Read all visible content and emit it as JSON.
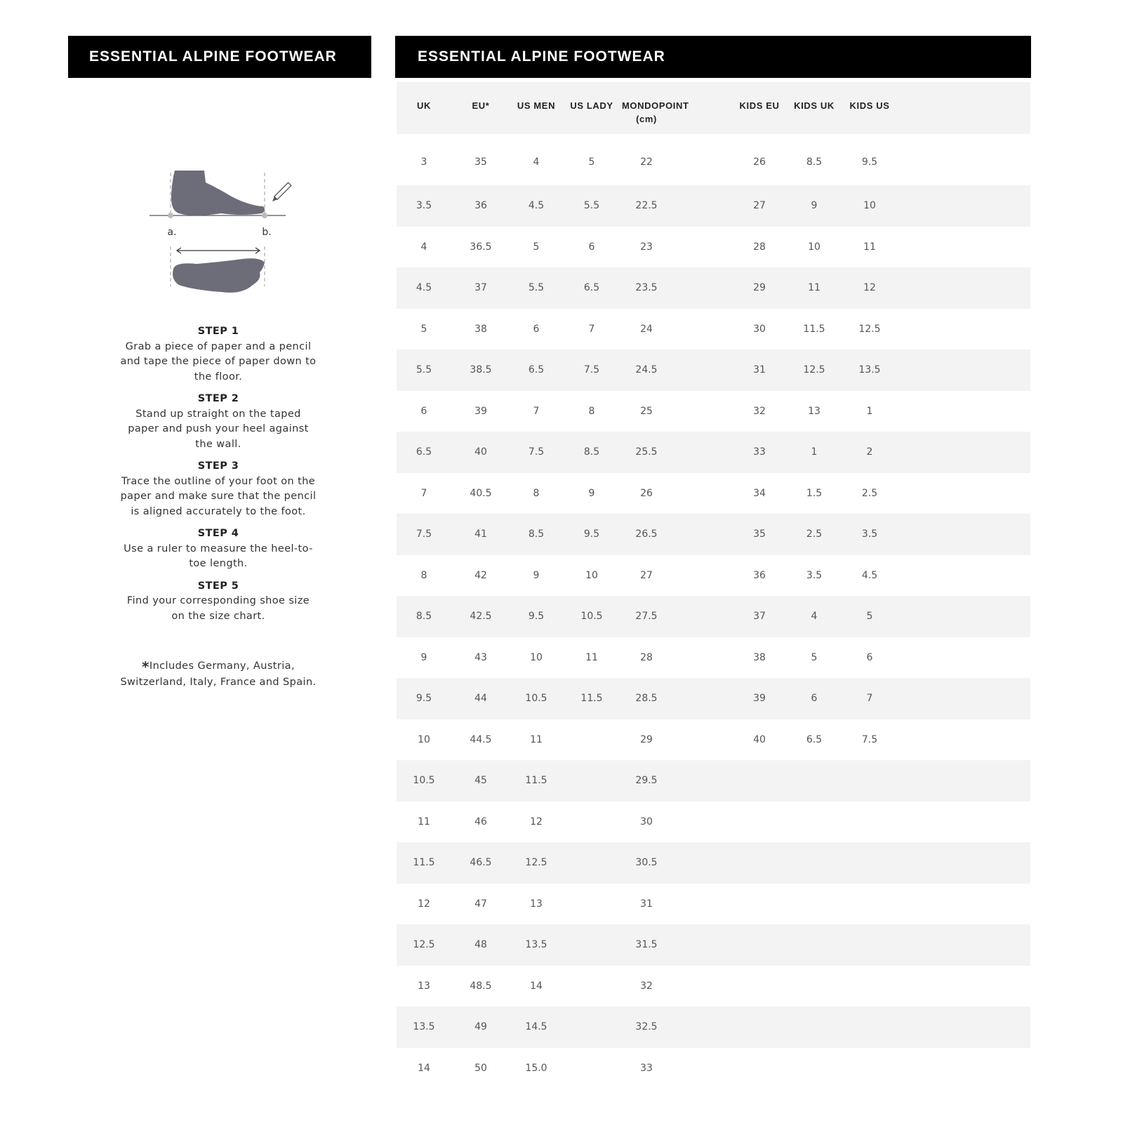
{
  "left_panel": {
    "title": "ESSENTIAL ALPINE FOOTWEAR",
    "illustration": {
      "label_a": "a.",
      "label_b": "b.",
      "icons": [
        "foot-side-icon",
        "foot-top-icon",
        "pencil-icon",
        "double-arrow-icon"
      ]
    },
    "steps": [
      {
        "title": "STEP 1",
        "text": "Grab a piece of paper and a pencil and tape the piece of paper down to the floor."
      },
      {
        "title": "STEP 2",
        "text": "Stand up straight on the taped paper and push your heel against the wall."
      },
      {
        "title": "STEP 3",
        "text": "Trace the outline of your foot on the paper and make sure that the pencil is aligned accurately to the foot."
      },
      {
        "title": "STEP 4",
        "text": "Use a ruler to measure the heel-to-toe length."
      },
      {
        "title": "STEP 5",
        "text": "Find your corresponding shoe size on the size chart."
      }
    ],
    "footnote_mark": "*",
    "footnote": "Includes Germany, Austria, Switzerland, Italy, France and Spain."
  },
  "size_chart": {
    "title": "ESSENTIAL ALPINE FOOTWEAR",
    "columns": [
      "UK",
      "EU*",
      "US MEN",
      "US LADY",
      "MONDOPOINT (cm)",
      "",
      "KIDS EU",
      "KIDS UK",
      "KIDS US",
      ""
    ],
    "rows": [
      [
        "3",
        "35",
        "4",
        "5",
        "22",
        "",
        "26",
        "8.5",
        "9.5"
      ],
      [
        "3.5",
        "36",
        "4.5",
        "5.5",
        "22.5",
        "",
        "27",
        "9",
        "10"
      ],
      [
        "4",
        "36.5",
        "5",
        "6",
        "23",
        "",
        "28",
        "10",
        "11"
      ],
      [
        "4.5",
        "37",
        "5.5",
        "6.5",
        "23.5",
        "",
        "29",
        "11",
        "12"
      ],
      [
        "5",
        "38",
        "6",
        "7",
        "24",
        "",
        "30",
        "11.5",
        "12.5"
      ],
      [
        "5.5",
        "38.5",
        "6.5",
        "7.5",
        "24.5",
        "",
        "31",
        "12.5",
        "13.5"
      ],
      [
        "6",
        "39",
        "7",
        "8",
        "25",
        "",
        "32",
        "13",
        "1"
      ],
      [
        "6.5",
        "40",
        "7.5",
        "8.5",
        "25.5",
        "",
        "33",
        "1",
        "2"
      ],
      [
        "7",
        "40.5",
        "8",
        "9",
        "26",
        "",
        "34",
        "1.5",
        "2.5"
      ],
      [
        "7.5",
        "41",
        "8.5",
        "9.5",
        "26.5",
        "",
        "35",
        "2.5",
        "3.5"
      ],
      [
        "8",
        "42",
        "9",
        "10",
        "27",
        "",
        "36",
        "3.5",
        "4.5"
      ],
      [
        "8.5",
        "42.5",
        "9.5",
        "10.5",
        "27.5",
        "",
        "37",
        "4",
        "5"
      ],
      [
        "9",
        "43",
        "10",
        "11",
        "28",
        "",
        "38",
        "5",
        "6"
      ],
      [
        "9.5",
        "44",
        "10.5",
        "11.5",
        "28.5",
        "",
        "39",
        "6",
        "7"
      ],
      [
        "10",
        "44.5",
        "11",
        "",
        "29",
        "",
        "40",
        "6.5",
        "7.5"
      ],
      [
        "10.5",
        "45",
        "11.5",
        "",
        "29.5",
        "",
        "",
        "",
        ""
      ],
      [
        "11",
        "46",
        "12",
        "",
        "30",
        "",
        "",
        "",
        ""
      ],
      [
        "11.5",
        "46.5",
        "12.5",
        "",
        "30.5",
        "",
        "",
        "",
        ""
      ],
      [
        "12",
        "47",
        "13",
        "",
        "31",
        "",
        "",
        "",
        ""
      ],
      [
        "12.5",
        "48",
        "13.5",
        "",
        "31.5",
        "",
        "",
        "",
        ""
      ],
      [
        "13",
        "48.5",
        "14",
        "",
        "32",
        "",
        "",
        "",
        ""
      ],
      [
        "13.5",
        "49",
        "14.5",
        "",
        "32.5",
        "",
        "",
        "",
        ""
      ],
      [
        "14",
        "50",
        "15.0",
        "",
        "33",
        "",
        "",
        "",
        ""
      ]
    ]
  }
}
